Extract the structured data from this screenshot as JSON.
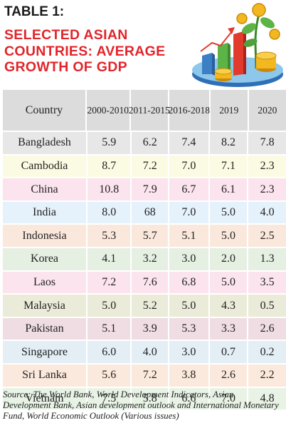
{
  "table_label": "TABLE 1:",
  "title_lines": [
    "SELECTED ASIAN",
    "COUNTRIES: AVERAGE",
    "GROWTH OF GDP"
  ],
  "chart_data": {
    "type": "table",
    "columns": [
      "Country",
      "2000-2010",
      "2011-2015",
      "2016-2018",
      "2019",
      "2020"
    ],
    "header_display": [
      [
        "Country"
      ],
      [
        "2000-",
        "2010"
      ],
      [
        "2011-",
        "2015"
      ],
      [
        "2016-",
        "2018"
      ],
      [
        "2019"
      ],
      [
        "2020"
      ]
    ],
    "rows": [
      {
        "country": "Bangladesh",
        "values": [
          "5.9",
          "6.2",
          "7.4",
          "8.2",
          "7.8"
        ],
        "bg": "#e7e7e7"
      },
      {
        "country": "Cambodia",
        "values": [
          "8.7",
          "7.2",
          "7.0",
          "7.1",
          "2.3"
        ],
        "bg": "#fbfbe3"
      },
      {
        "country": "China",
        "values": [
          "10.8",
          "7.9",
          "6.7",
          "6.1",
          "2.3"
        ],
        "bg": "#fbe4ee"
      },
      {
        "country": "India",
        "values": [
          "8.0",
          "68",
          "7.0",
          "5.0",
          "4.0"
        ],
        "bg": "#e5f1fb"
      },
      {
        "country": "Indonesia",
        "values": [
          "5.3",
          "5.7",
          "5.1",
          "5.0",
          "2.5"
        ],
        "bg": "#fbe8dc"
      },
      {
        "country": "Korea",
        "values": [
          "4.1",
          "3.2",
          "3.0",
          "2.0",
          "1.3"
        ],
        "bg": "#e5efe2"
      },
      {
        "country": "Laos",
        "values": [
          "7.2",
          "7.6",
          "6.8",
          "5.0",
          "3.5"
        ],
        "bg": "#fbe4ee"
      },
      {
        "country": "Malaysia",
        "values": [
          "5.0",
          "5.2",
          "5.0",
          "4.3",
          "0.5"
        ],
        "bg": "#ebebd9"
      },
      {
        "country": "Pakistan",
        "values": [
          "5.1",
          "3.9",
          "5.3",
          "3.3",
          "2.6"
        ],
        "bg": "#efdde3"
      },
      {
        "country": "Singapore",
        "values": [
          "6.0",
          "4.0",
          "3.0",
          "0.7",
          "0.2"
        ],
        "bg": "#e3eef5"
      },
      {
        "country": "Sri Lanka",
        "values": [
          "5.6",
          "7.2",
          "3.8",
          "2.6",
          "2.2"
        ],
        "bg": "#fce9dd"
      },
      {
        "country": "Vietnam",
        "values": [
          "7.5",
          "5.8",
          "6.6",
          "7.0",
          "4.8"
        ],
        "bg": "#e8f3e6"
      }
    ]
  },
  "source_text": "Source: The World Bank, World Development Indicators, Asian Development Bank, Asian development outlook and International Monetary Fund, World Economic Outlook (Various issues)",
  "colors": {
    "title": "#e2252b",
    "header_bg": "#dcdcdc",
    "coin_gold": "#f3b81f",
    "bar_blue": "#3d7fc4",
    "bar_green": "#5cb346",
    "bar_red": "#e23a2c"
  },
  "illustration_icons": [
    "growth-chart-icon",
    "money-plant-icon",
    "coin-stack-icon"
  ]
}
